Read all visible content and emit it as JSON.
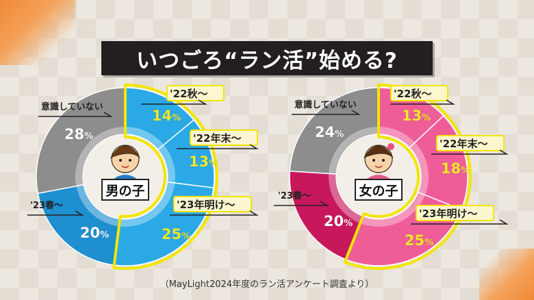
{
  "title": "いつごろ“ラン活”始める?",
  "source": "（MayLight2024年度のラン活アンケート調査より）",
  "colors": {
    "boy_main": "#2aa9e6",
    "boy_dark": "#1e8fcf",
    "girl_main": "#ef5d98",
    "girl_dark": "#c8185c",
    "not_aware": "#8d8d8d",
    "highlight": "#f2e600",
    "pct_text_boy": "#f4ea2a",
    "pct_text_girl": "#f4ea2a"
  },
  "chart_data": [
    {
      "type": "pie",
      "title": "男の子",
      "categories": [
        "'22秋～",
        "'22年末～",
        "'23年明け～",
        "'23春～",
        "意識していない"
      ],
      "values": [
        14,
        13,
        25,
        20,
        28
      ],
      "unit": "%",
      "labels": [
        "14%",
        "13%",
        "25%",
        "20%",
        "28%"
      ]
    },
    {
      "type": "pie",
      "title": "女の子",
      "categories": [
        "'22秋～",
        "'22年末～",
        "'23年明け～",
        "'23春～",
        "意識していない"
      ],
      "values": [
        13,
        18,
        25,
        20,
        24
      ],
      "unit": "%",
      "labels": [
        "13%",
        "18%",
        "25%",
        "20%",
        "24%"
      ]
    }
  ]
}
